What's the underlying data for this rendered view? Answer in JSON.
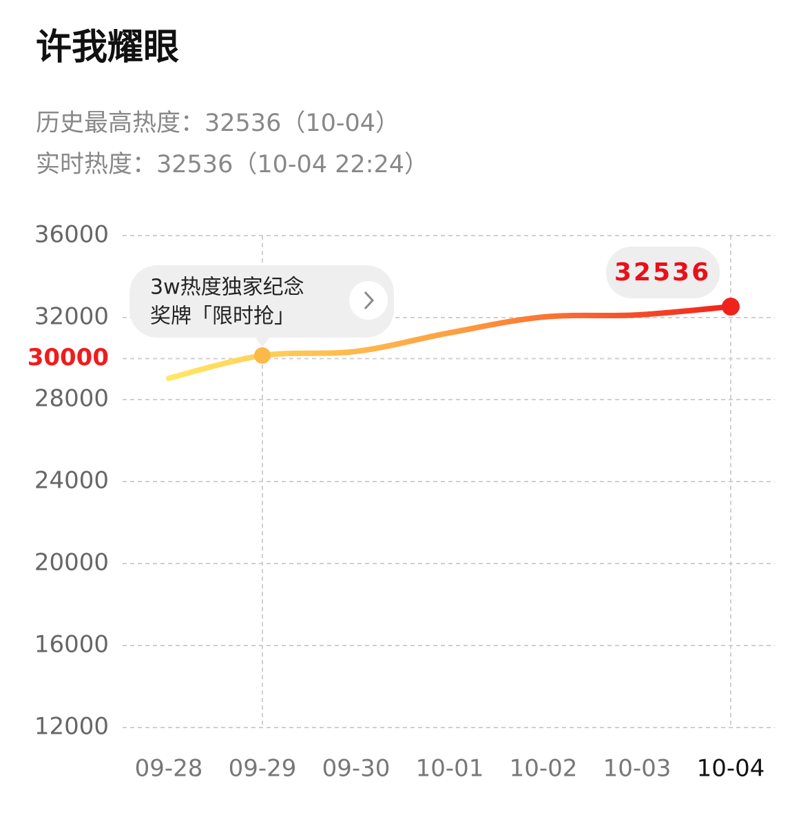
{
  "chart_data": {
    "type": "line",
    "title": "许我耀眼",
    "subtitle": [
      "历史最高热度：32536（10-04）",
      "实时热度：32536（10-04 22:24）"
    ],
    "categories": [
      "09-28",
      "09-29",
      "09-30",
      "10-01",
      "10-02",
      "10-03",
      "10-04"
    ],
    "values": [
      29040,
      30150,
      30350,
      31260,
      32030,
      32130,
      32536
    ],
    "ylim": [
      12000,
      36000
    ],
    "yticks": [
      12000,
      16000,
      20000,
      24000,
      28000,
      30000,
      32000,
      36000
    ],
    "highlight_tick": 30000,
    "highlight_color": "#f01c1c",
    "gradient": [
      "#ffe866",
      "#ffa040",
      "#f0221c"
    ],
    "grid": true,
    "annotation": {
      "x": "09-29",
      "lines": [
        "3w热度独家纪念",
        "奖牌「限时抢」"
      ]
    }
  }
}
